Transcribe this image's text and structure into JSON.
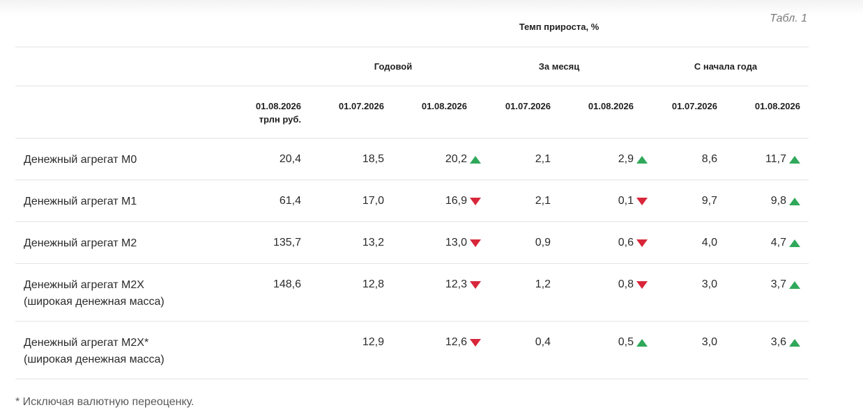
{
  "table": {
    "label": "Табл. 1",
    "group_header": "Темп прироста, %",
    "subgroups": [
      "Годовой",
      "За месяц",
      "С начала года"
    ],
    "column_headers": [
      {
        "date": "01.08.2026",
        "unit": "трлн руб."
      },
      {
        "date": "01.07.2026"
      },
      {
        "date": "01.08.2026"
      },
      {
        "date": "01.07.2026"
      },
      {
        "date": "01.08.2026"
      },
      {
        "date": "01.07.2026"
      },
      {
        "date": "01.08.2026"
      }
    ],
    "rows": [
      {
        "label": "Денежный агрегат М0",
        "sublabel": "",
        "values": [
          "20,4",
          "18,5",
          "20,2",
          "2,1",
          "2,9",
          "8,6",
          "11,7"
        ],
        "trends": [
          "up",
          "up",
          "up"
        ]
      },
      {
        "label": "Денежный агрегат М1",
        "sublabel": "",
        "values": [
          "61,4",
          "17,0",
          "16,9",
          "2,1",
          "0,1",
          "9,7",
          "9,8"
        ],
        "trends": [
          "down",
          "down",
          "up"
        ]
      },
      {
        "label": "Денежный агрегат М2",
        "sublabel": "",
        "values": [
          "135,7",
          "13,2",
          "13,0",
          "0,9",
          "0,6",
          "4,0",
          "4,7"
        ],
        "trends": [
          "down",
          "down",
          "up"
        ]
      },
      {
        "label": "Денежный агрегат М2Х",
        "sublabel": "(широкая денежная масса)",
        "values": [
          "148,6",
          "12,8",
          "12,3",
          "1,2",
          "0,8",
          "3,0",
          "3,7"
        ],
        "trends": [
          "down",
          "down",
          "up"
        ]
      },
      {
        "label": "Денежный агрегат М2Х*",
        "sublabel": "(широкая денежная масса)",
        "values": [
          "",
          "12,9",
          "12,6",
          "0,4",
          "0,5",
          "3,0",
          "3,6"
        ],
        "trends": [
          "down",
          "up",
          "up"
        ]
      }
    ],
    "footnote": "* Исключая валютную переоценку."
  },
  "colors": {
    "up": "#2fa85a",
    "down": "#d8263a"
  },
  "icons": {
    "up": "triangle-up-icon",
    "down": "triangle-down-icon"
  }
}
